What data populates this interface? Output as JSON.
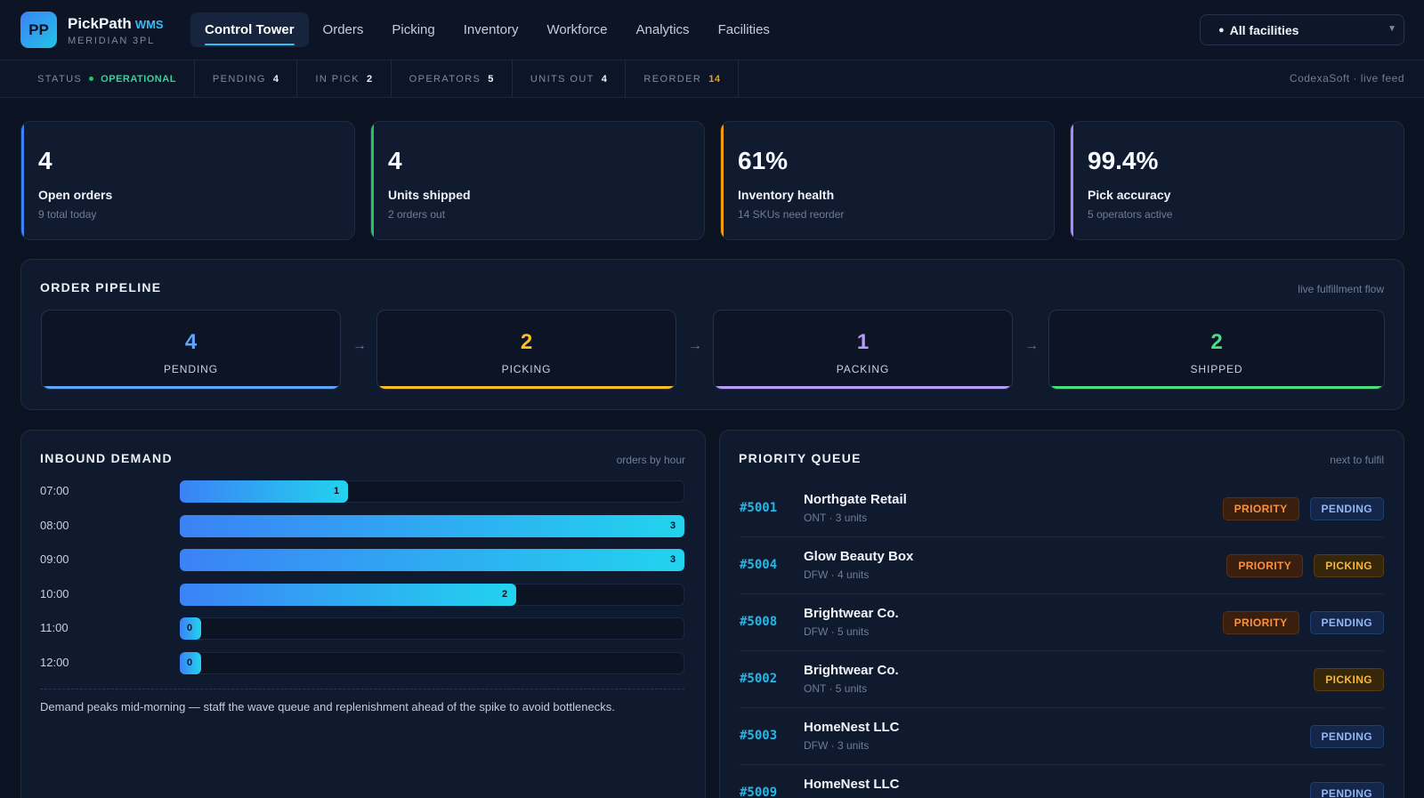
{
  "app": {
    "logo_initials": "PP",
    "name": "PickPath",
    "name_suffix": "WMS",
    "company": "MERIDIAN 3PL"
  },
  "nav": {
    "tabs": [
      {
        "label": "Control Tower",
        "active": true
      },
      {
        "label": "Orders",
        "active": false
      },
      {
        "label": "Picking",
        "active": false
      },
      {
        "label": "Inventory",
        "active": false
      },
      {
        "label": "Workforce",
        "active": false
      },
      {
        "label": "Analytics",
        "active": false
      },
      {
        "label": "Facilities",
        "active": false
      }
    ]
  },
  "facility_select": {
    "icon": "globe-icon",
    "value": "All facilities"
  },
  "status_strip": {
    "status_label": "STATUS",
    "status_value": "OPERATIONAL",
    "cells": [
      {
        "label": "PENDING",
        "value": "4"
      },
      {
        "label": "IN PICK",
        "value": "2"
      },
      {
        "label": "OPERATORS",
        "value": "5"
      },
      {
        "label": "UNITS OUT",
        "value": "4"
      },
      {
        "label": "REORDER",
        "value": "14"
      }
    ],
    "feed_note": "CodexaSoft · live feed"
  },
  "kpis": [
    {
      "value": "4",
      "label": "Open orders",
      "sub": "9 total today",
      "accent": "#3b82f6"
    },
    {
      "value": "4",
      "label": "Units shipped",
      "sub": "2 orders out",
      "accent": "#22c55e"
    },
    {
      "value": "61%",
      "label": "Inventory health",
      "sub": "14 SKUs need reorder",
      "accent": "#f59e0b"
    },
    {
      "value": "99.4%",
      "label": "Pick accuracy",
      "sub": "5 operators active",
      "accent": "#a78bfa"
    }
  ],
  "pipeline": {
    "title": "ORDER PIPELINE",
    "note": "live fulfillment flow",
    "arrow": "→",
    "stages": [
      {
        "count": "4",
        "label": "PENDING",
        "color": "#60a5fa"
      },
      {
        "count": "2",
        "label": "PICKING",
        "color": "#fbbf24"
      },
      {
        "count": "1",
        "label": "PACKING",
        "color": "#b69cf8"
      },
      {
        "count": "2",
        "label": "SHIPPED",
        "color": "#4ade80"
      }
    ]
  },
  "demand": {
    "title": "INBOUND DEMAND",
    "note": "orders by hour",
    "footnote": "Demand peaks mid-morning — staff the wave queue and replenishment ahead of the spike to avoid bottlenecks."
  },
  "chart_data": {
    "type": "bar",
    "orientation": "horizontal",
    "categories": [
      "07:00",
      "08:00",
      "09:00",
      "10:00",
      "11:00",
      "12:00"
    ],
    "values": [
      1,
      3,
      3,
      2,
      0,
      0
    ],
    "xlim": [
      0,
      3
    ]
  },
  "queue": {
    "title": "PRIORITY QUEUE",
    "note": "next to fulfil",
    "rows": [
      {
        "id": "#5001",
        "name": "Northgate Retail",
        "meta": "ONT · 3 units",
        "tags": [
          "PRIORITY",
          "PENDING"
        ]
      },
      {
        "id": "#5004",
        "name": "Glow Beauty Box",
        "meta": "DFW · 4 units",
        "tags": [
          "PRIORITY",
          "PICKING"
        ]
      },
      {
        "id": "#5008",
        "name": "Brightwear Co.",
        "meta": "DFW · 5 units",
        "tags": [
          "PRIORITY",
          "PENDING"
        ]
      },
      {
        "id": "#5002",
        "name": "Brightwear Co.",
        "meta": "ONT · 5 units",
        "tags": [
          "PICKING"
        ]
      },
      {
        "id": "#5003",
        "name": "HomeNest LLC",
        "meta": "DFW · 3 units",
        "tags": [
          "PENDING"
        ]
      },
      {
        "id": "#5009",
        "name": "HomeNest LLC",
        "meta": "",
        "tags": [
          "PENDING"
        ]
      }
    ]
  }
}
